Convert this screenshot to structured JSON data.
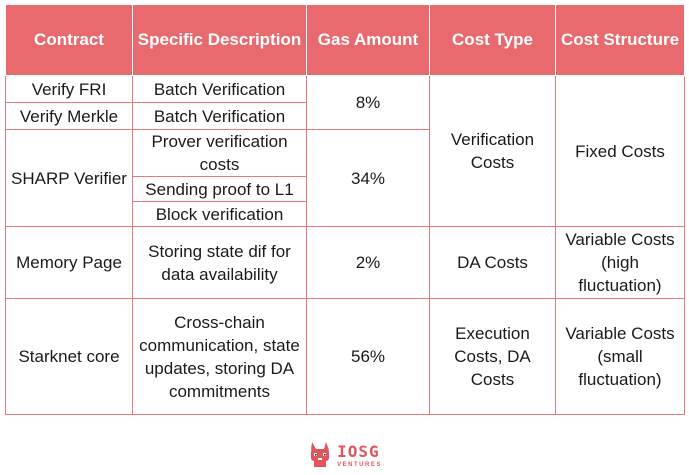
{
  "headers": [
    "Contract",
    "Specific Description",
    "Gas Amount",
    "Cost Type",
    "Cost Structure"
  ],
  "rows": {
    "verify_fri": {
      "contract": "Verify FRI",
      "description": "Batch Verification"
    },
    "verify_merkle": {
      "contract": "Verify Merkle",
      "description": "Batch Verification"
    },
    "gas_fri_merkle": "8%",
    "sharp": {
      "contract": "SHARP Verifier",
      "descriptions": [
        "Prover verification costs",
        "Sending proof to L1",
        "Block verification"
      ],
      "gas": "34%"
    },
    "verification_cost_type": "Verification Costs",
    "verification_cost_structure": "Fixed Costs",
    "memory_page": {
      "contract": "Memory Page",
      "description": "Storing state dif for data availability",
      "gas": "2%",
      "cost_type": "DA Costs",
      "cost_structure": "Variable Costs (high fluctuation)"
    },
    "starknet_core": {
      "contract": "Starknet core",
      "description": "Cross-chain communication, state updates, storing DA commitments",
      "gas": "56%",
      "cost_type": "Execution Costs, DA Costs",
      "cost_structure": "Variable Costs (small fluctuation)"
    }
  },
  "logo": {
    "brand": "IOSG",
    "tagline": "VENTURES",
    "icon": "fox-mascot-icon"
  },
  "colors": {
    "header_bg": "#e96a6e",
    "border": "#e8787c",
    "brand": "#e0565c"
  }
}
